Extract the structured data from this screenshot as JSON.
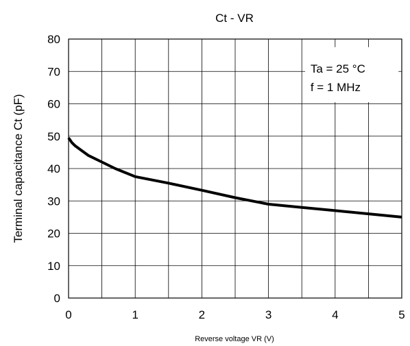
{
  "chart_data": {
    "type": "line",
    "title": "Ct - VR",
    "xlabel": "Reverse voltage VR (V)",
    "ylabel": "Terminal capacitance Ct (pF)",
    "xlim": [
      0,
      5
    ],
    "ylim": [
      0,
      80
    ],
    "x_ticks": [
      "0",
      "1",
      "2",
      "3",
      "4",
      "5"
    ],
    "y_ticks": [
      "0",
      "10",
      "20",
      "30",
      "40",
      "50",
      "60",
      "70",
      "80"
    ],
    "x_minor_step": 0.5,
    "y_step": 10,
    "grid": true,
    "annotations": [
      "Ta = 25 °C",
      "f = 1 MHz"
    ],
    "annotation_position": "top-right",
    "line_color": "#000000",
    "series": [
      {
        "x": [
          0,
          0.05,
          0.1,
          0.2,
          0.3,
          0.5,
          0.7,
          1.0,
          1.5,
          2.0,
          2.5,
          3.0,
          3.5,
          4.0,
          4.5,
          5.0
        ],
        "y": [
          49.5,
          48.0,
          47.0,
          45.5,
          44.0,
          42.0,
          40.0,
          37.5,
          35.5,
          33.3,
          31.0,
          29.0,
          28.0,
          27.0,
          26.0,
          25.0
        ]
      }
    ]
  }
}
